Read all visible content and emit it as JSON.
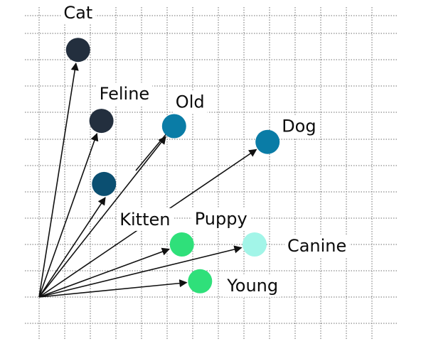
{
  "diagram": {
    "words": [
      {
        "label": "Cat",
        "color": "#232f3e",
        "x": 1.5,
        "y": 9.4
      },
      {
        "label": "Feline",
        "color": "#232f3e",
        "x": 2.4,
        "y": 6.7
      },
      {
        "label": "Kitten",
        "color": "#0b4f71",
        "x": 2.5,
        "y": 4.3
      },
      {
        "label": "Old",
        "color": "#0a7ca6",
        "x": 5.2,
        "y": 6.5
      },
      {
        "label": "Dog",
        "color": "#0a7ca6",
        "x": 8.8,
        "y": 5.9
      },
      {
        "label": "Puppy",
        "color": "#2fe07a",
        "x": 5.5,
        "y": 2.0
      },
      {
        "label": "Canine",
        "color": "#a2f5e8",
        "x": 8.3,
        "y": 2.0
      },
      {
        "label": "Young",
        "color": "#2fe07a",
        "x": 6.2,
        "y": 0.6
      }
    ]
  }
}
